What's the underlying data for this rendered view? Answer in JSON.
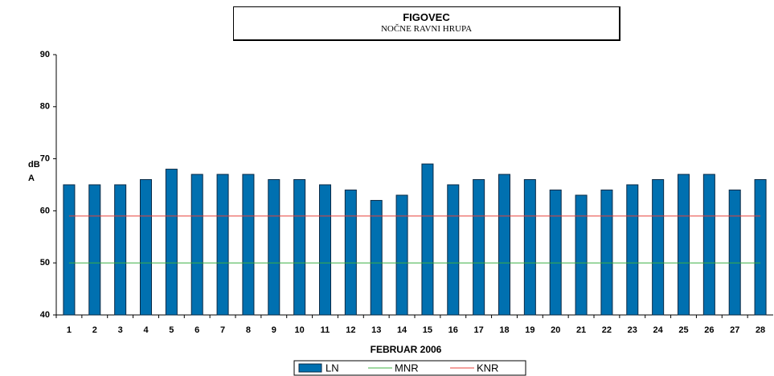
{
  "chart_data": {
    "type": "bar",
    "title": "FIGOVEC",
    "subtitle": "NOČNE RAVNI HRUPA",
    "x_label": "FEBRUAR  2006",
    "y_label": "dB A",
    "categories": [
      "1",
      "2",
      "3",
      "4",
      "5",
      "6",
      "7",
      "8",
      "9",
      "10",
      "11",
      "12",
      "13",
      "14",
      "15",
      "16",
      "17",
      "18",
      "19",
      "20",
      "21",
      "22",
      "23",
      "24",
      "25",
      "26",
      "27",
      "28"
    ],
    "series": [
      {
        "name": "LN",
        "color": "#0070b0",
        "values": [
          65,
          65,
          65,
          66,
          68,
          67,
          67,
          67,
          66,
          66,
          65,
          64,
          62,
          63,
          69,
          65,
          66,
          67,
          66,
          64,
          63,
          64,
          65,
          66,
          67,
          67,
          64,
          66
        ]
      },
      {
        "name": "MNR",
        "color": "#3cb043",
        "values": [
          50,
          50,
          50,
          50,
          50,
          50,
          50,
          50,
          50,
          50,
          50,
          50,
          50,
          50,
          50,
          50,
          50,
          50,
          50,
          50,
          50,
          50,
          50,
          50,
          50,
          50,
          50,
          50
        ]
      },
      {
        "name": "KNR",
        "color": "#e8403a",
        "values": [
          59,
          59,
          59,
          59,
          59,
          59,
          59,
          59,
          59,
          59,
          59,
          59,
          59,
          59,
          59,
          59,
          59,
          59,
          59,
          59,
          59,
          59,
          59,
          59,
          59,
          59,
          59,
          59
        ]
      }
    ],
    "ylim": [
      40,
      90
    ],
    "yticks": [
      40,
      50,
      60,
      70,
      80,
      90
    ],
    "grid": false
  }
}
